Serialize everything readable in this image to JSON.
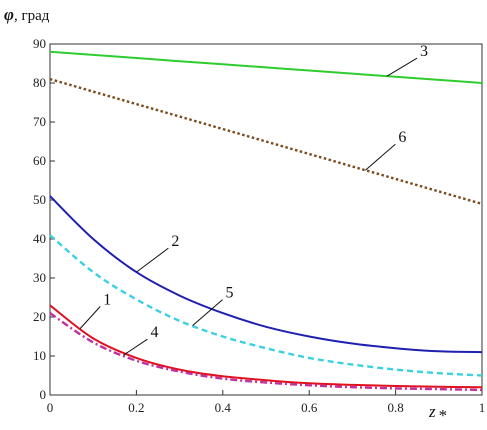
{
  "chart_data": {
    "type": "line",
    "title": "",
    "ylabel_symbol": "φ",
    "ylabel_unit": ", град",
    "xlabel_symbol": "z",
    "xlabel_subscript": "*",
    "xlim": [
      0,
      1
    ],
    "ylim": [
      0,
      90
    ],
    "x_ticks": [
      "0",
      "0.2",
      "0.4",
      "0.6",
      "0.8",
      "1"
    ],
    "y_ticks": [
      "0",
      "10",
      "20",
      "30",
      "40",
      "50",
      "60",
      "70",
      "80",
      "90"
    ],
    "grid": false,
    "x": [
      0,
      0.1,
      0.2,
      0.3,
      0.4,
      0.5,
      0.6,
      0.7,
      0.8,
      0.9,
      1.0
    ],
    "series": [
      {
        "name": "1",
        "color": "#e0101e",
        "style": "solid",
        "values": [
          23,
          14.5,
          9.5,
          6.5,
          4.8,
          3.8,
          3.0,
          2.6,
          2.3,
          2.1,
          2.0
        ]
      },
      {
        "name": "2",
        "color": "#1f1fb0",
        "style": "solid",
        "values": [
          51,
          40,
          31.5,
          25.5,
          21,
          17.5,
          15,
          13.2,
          12,
          11.2,
          11
        ]
      },
      {
        "name": "3",
        "color": "#2ecc2e",
        "style": "solid",
        "values": [
          88,
          87.2,
          86.4,
          85.6,
          84.8,
          84,
          83.2,
          82.4,
          81.6,
          80.8,
          80
        ]
      },
      {
        "name": "4",
        "color": "#c030a0",
        "style": "dashdot",
        "values": [
          21,
          13.5,
          8.8,
          6.0,
          4.2,
          3.2,
          2.5,
          2.0,
          1.7,
          1.5,
          1.3
        ]
      },
      {
        "name": "5",
        "color": "#3cd0e0",
        "style": "dashed",
        "values": [
          41,
          31.5,
          24.5,
          19,
          15,
          12,
          9.5,
          7.8,
          6.5,
          5.6,
          5.0
        ]
      },
      {
        "name": "6",
        "color": "#7a4a1a",
        "style": "dotted",
        "values": [
          81,
          77.8,
          74.6,
          71.4,
          68.2,
          65,
          61.8,
          58.6,
          55.4,
          52.2,
          49
        ]
      }
    ],
    "annotations": [
      {
        "text": "1",
        "series": "1",
        "at_x": 0.07
      },
      {
        "text": "2",
        "series": "2",
        "at_x": 0.2
      },
      {
        "text": "3",
        "series": "3",
        "at_x": 0.78
      },
      {
        "text": "4",
        "series": "4",
        "at_x": 0.17
      },
      {
        "text": "5",
        "series": "5",
        "at_x": 0.33
      },
      {
        "text": "6",
        "series": "6",
        "at_x": 0.73
      }
    ]
  }
}
